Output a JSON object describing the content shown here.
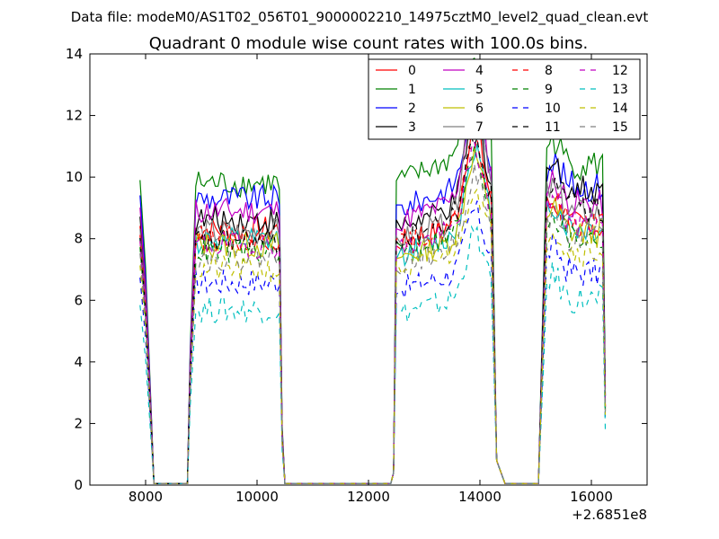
{
  "suptitle": "Data file: modeM0/AS1T02_056T01_9000002210_14975cztM0_level2_quad_clean.evt",
  "chart_data": {
    "type": "line",
    "title": "Quadrant 0 module wise count rates with 100.0s bins.",
    "xlabel": "",
    "ylabel": "",
    "xlim": [
      7000,
      17000
    ],
    "ylim": [
      0,
      14
    ],
    "x_offset_label": "+2.6851e8",
    "xticks": [
      8000,
      10000,
      12000,
      14000,
      16000
    ],
    "xtick_labels": [
      "8000",
      "10000",
      "12000",
      "14000",
      "16000"
    ],
    "yticks": [
      0,
      2,
      4,
      6,
      8,
      10,
      12,
      14
    ],
    "ytick_labels": [
      "0",
      "2",
      "4",
      "6",
      "8",
      "10",
      "12",
      "14"
    ],
    "legend_position": "top-right",
    "gaps": [
      {
        "after": 8150,
        "rate": 0.05,
        "until": 8750
      },
      {
        "after": 10500,
        "rate": 0.05,
        "until": 12400
      },
      {
        "after": 14450,
        "rate": 0.05,
        "until": 15050
      }
    ],
    "segments": [
      {
        "x0": 7900,
        "x1": 8150,
        "shape": [
          1.0,
          0.8,
          0.3,
          0.0
        ]
      },
      {
        "x0": 8750,
        "x1": 10500,
        "shape": "plateau"
      },
      {
        "x0": 12400,
        "x1": 14450,
        "shape": "hump"
      },
      {
        "x0": 15050,
        "x1": 16250,
        "shape": "plateau2"
      }
    ],
    "series": [
      {
        "name": "0",
        "color": "#ff0000",
        "style": "solid",
        "level1": 8.3,
        "level2": 7.9,
        "peak2": 11.0,
        "level3": 8.4
      },
      {
        "name": "1",
        "color": "#008000",
        "style": "solid",
        "level1": 9.8,
        "level2": 9.9,
        "peak2": 13.0,
        "level3": 10.4
      },
      {
        "name": "2",
        "color": "#0000ff",
        "style": "solid",
        "level1": 9.3,
        "level2": 9.0,
        "peak2": 11.6,
        "level3": 9.7
      },
      {
        "name": "3",
        "color": "#000000",
        "style": "solid",
        "level1": 8.6,
        "level2": 8.4,
        "peak2": 11.2,
        "level3": 9.6
      },
      {
        "name": "4",
        "color": "#c000c0",
        "style": "solid",
        "level1": 8.9,
        "level2": 8.6,
        "peak2": 12.0,
        "level3": 9.1
      },
      {
        "name": "5",
        "color": "#00bfbf",
        "style": "solid",
        "level1": 7.9,
        "level2": 7.5,
        "peak2": 10.2,
        "level3": 8.3
      },
      {
        "name": "6",
        "color": "#bfbf00",
        "style": "solid",
        "level1": 7.8,
        "level2": 7.4,
        "peak2": 10.0,
        "level3": 8.2
      },
      {
        "name": "7",
        "color": "#808080",
        "style": "solid",
        "level1": 8.2,
        "level2": 8.0,
        "peak2": 12.6,
        "level3": 8.8
      },
      {
        "name": "8",
        "color": "#ff0000",
        "style": "dashed",
        "level1": 8.0,
        "level2": 7.8,
        "peak2": 10.4,
        "level3": 8.5
      },
      {
        "name": "9",
        "color": "#008000",
        "style": "dashed",
        "level1": 7.6,
        "level2": 7.6,
        "peak2": 10.0,
        "level3": 8.0
      },
      {
        "name": "10",
        "color": "#0000ff",
        "style": "dashed",
        "level1": 6.6,
        "level2": 6.4,
        "peak2": 8.3,
        "level3": 6.9
      },
      {
        "name": "11",
        "color": "#000000",
        "style": "dashed",
        "level1": 7.9,
        "level2": 8.0,
        "peak2": 10.5,
        "level3": 9.0
      },
      {
        "name": "12",
        "color": "#c000c0",
        "style": "dashed",
        "level1": 7.8,
        "level2": 7.7,
        "peak2": 10.1,
        "level3": 8.5
      },
      {
        "name": "13",
        "color": "#00bfbf",
        "style": "dashed",
        "level1": 5.7,
        "level2": 5.6,
        "peak2": 7.6,
        "level3": 6.0
      },
      {
        "name": "14",
        "color": "#bfbf00",
        "style": "dashed",
        "level1": 7.0,
        "level2": 7.0,
        "peak2": 9.0,
        "level3": 7.6
      },
      {
        "name": "15",
        "color": "#808080",
        "style": "dashed",
        "level1": 7.4,
        "level2": 7.2,
        "peak2": 9.4,
        "level3": 8.0
      }
    ]
  }
}
